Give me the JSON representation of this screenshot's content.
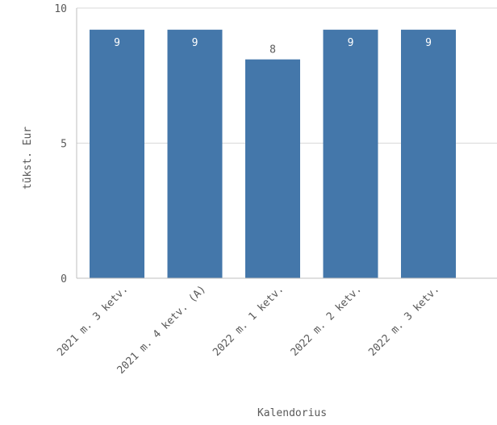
{
  "chart_data": {
    "type": "bar",
    "categories": [
      "2021 m. 3 ketv.",
      "2021 m. 4 ketv. (A)",
      "2022 m. 1 ketv.",
      "2022 m. 2 ketv.",
      "2022 m. 3 ketv."
    ],
    "values": [
      9.2,
      9.2,
      8.1,
      9.2,
      9.2
    ],
    "data_labels": [
      "9",
      "9",
      "8",
      "9",
      "9"
    ],
    "title": "",
    "xlabel": "Kalendorius",
    "ylabel": "tūkst. Eur",
    "ylim": [
      0,
      10
    ],
    "yticks": [
      0,
      5,
      10
    ],
    "ytick_labels": [
      "0",
      "5",
      "10"
    ],
    "grid": true,
    "bar_color": "#4477aa",
    "grid_color": "#d9d9d9",
    "axis_color": "#bfbfbf",
    "label_inside_color": "#ffffff",
    "label_outside_color": "#595959"
  }
}
